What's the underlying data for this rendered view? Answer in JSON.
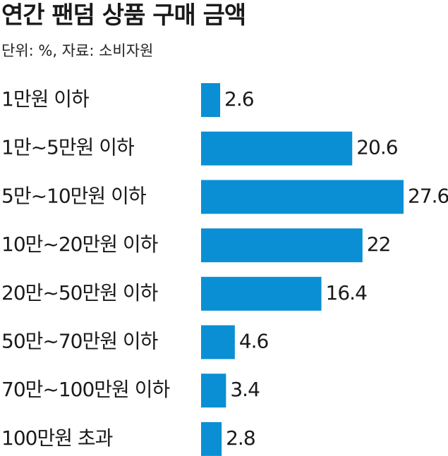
{
  "chart_data": {
    "type": "bar",
    "orientation": "horizontal",
    "title": "연간 팬덤 상품 구매 금액",
    "subtitle": "단위: %, 자료: 소비자원",
    "categories": [
      "1만원 이하",
      "1만~5만원 이하",
      "5만~10만원 이하",
      "10만~20만원 이하",
      "20만~50만원 이하",
      "50만~70만원 이하",
      "70만~100만원 이하",
      "100만원 초과"
    ],
    "values": [
      2.6,
      20.6,
      27.6,
      22,
      16.4,
      4.6,
      3.4,
      2.8
    ],
    "value_labels": [
      "2.6",
      "20.6",
      "27.6",
      "22",
      "16.4",
      "4.6",
      "3.4",
      "2.8"
    ],
    "bar_color": "#0a8fd4",
    "grid": false,
    "legend": "none"
  }
}
